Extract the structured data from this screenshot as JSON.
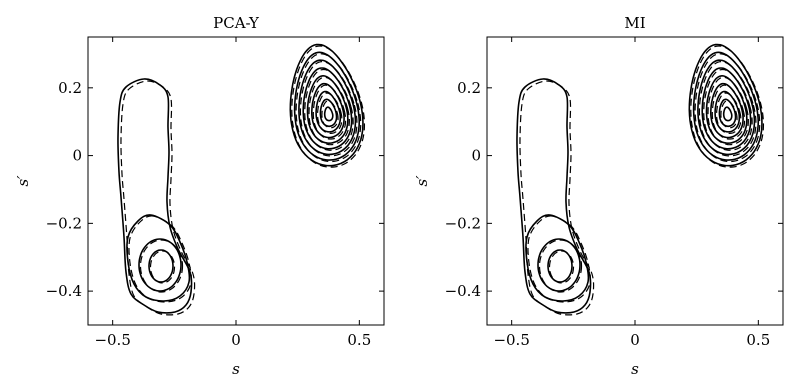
{
  "chart_data": [
    {
      "type": "contour",
      "title": "PCA-Y",
      "xlabel": "s",
      "ylabel": "s′",
      "xlim": [
        -0.6,
        0.6
      ],
      "ylim": [
        -0.5,
        0.35
      ],
      "xticks": [
        -0.5,
        0,
        0.5
      ],
      "xtick_labels": [
        "−0.5",
        "0",
        "0.5"
      ],
      "yticks": [
        -0.4,
        -0.2,
        0,
        0.2
      ],
      "ytick_labels": [
        "−0.4",
        "−0.2",
        "0",
        "0.2"
      ],
      "grid": false,
      "line_styles": [
        "solid",
        "dashed"
      ],
      "clusters": [
        {
          "center": [
            0.38,
            0.15
          ],
          "levels": 9
        },
        {
          "center": [
            -0.3,
            -0.32
          ],
          "levels": 4
        }
      ]
    },
    {
      "type": "contour",
      "title": "MI",
      "xlabel": "s",
      "ylabel": "s′",
      "xlim": [
        -0.6,
        0.6
      ],
      "ylim": [
        -0.5,
        0.35
      ],
      "xticks": [
        -0.5,
        0,
        0.5
      ],
      "xtick_labels": [
        "−0.5",
        "0",
        "0.5"
      ],
      "yticks": [
        -0.4,
        -0.2,
        0,
        0.2
      ],
      "ytick_labels": [
        "−0.4",
        "−0.2",
        "0",
        "0.2"
      ],
      "grid": false,
      "line_styles": [
        "solid",
        "dashed"
      ],
      "clusters": [
        {
          "center": [
            0.38,
            0.15
          ],
          "levels": 9
        },
        {
          "center": [
            -0.3,
            -0.32
          ],
          "levels": 4
        }
      ]
    }
  ]
}
